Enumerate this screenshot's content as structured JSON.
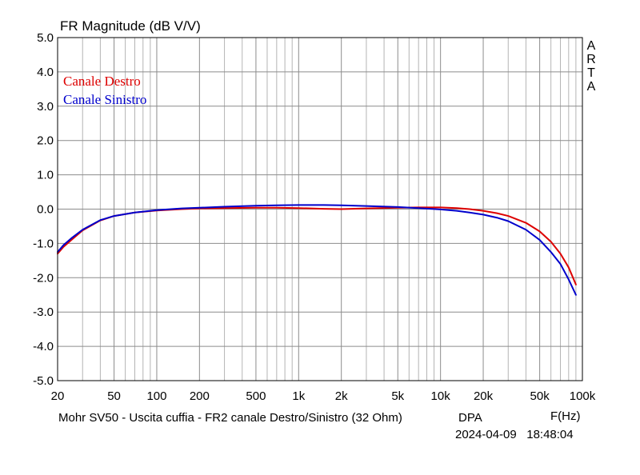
{
  "chart_data": {
    "type": "line",
    "title": "FR Magnitude (dB V/V)",
    "x_scale": "log",
    "xlim": [
      20,
      100000
    ],
    "ylim": [
      -5,
      5
    ],
    "grid": true,
    "legend_position": "top-left",
    "x_ticks": [
      {
        "value": 20,
        "label": "20"
      },
      {
        "value": 50,
        "label": "50"
      },
      {
        "value": 100,
        "label": "100"
      },
      {
        "value": 200,
        "label": "200"
      },
      {
        "value": 500,
        "label": "500"
      },
      {
        "value": 1000,
        "label": "1k"
      },
      {
        "value": 2000,
        "label": "2k"
      },
      {
        "value": 5000,
        "label": "5k"
      },
      {
        "value": 10000,
        "label": "10k"
      },
      {
        "value": 20000,
        "label": "20k"
      },
      {
        "value": 50000,
        "label": "50k"
      },
      {
        "value": 100000,
        "label": "100k"
      }
    ],
    "y_ticks": [
      {
        "value": 5,
        "label": "5.0"
      },
      {
        "value": 4,
        "label": "4.0"
      },
      {
        "value": 3,
        "label": "3.0"
      },
      {
        "value": 2,
        "label": "2.0"
      },
      {
        "value": 1,
        "label": "1.0"
      },
      {
        "value": 0,
        "label": "0.0"
      },
      {
        "value": -1,
        "label": "-1.0"
      },
      {
        "value": -2,
        "label": "-2.0"
      },
      {
        "value": -3,
        "label": "-3.0"
      },
      {
        "value": -4,
        "label": "-4.0"
      },
      {
        "value": -5,
        "label": "-5.0"
      }
    ],
    "series": [
      {
        "name": "Canale Destro",
        "color": "#dd0000",
        "x": [
          20,
          22,
          25,
          30,
          40,
          50,
          70,
          100,
          150,
          200,
          300,
          500,
          700,
          1000,
          1500,
          2000,
          3000,
          5000,
          7000,
          10000,
          13000,
          16000,
          20000,
          25000,
          30000,
          40000,
          50000,
          60000,
          70000,
          80000,
          90000
        ],
        "y": [
          -1.3,
          -1.1,
          -0.9,
          -0.62,
          -0.33,
          -0.2,
          -0.1,
          -0.04,
          0.0,
          0.02,
          0.03,
          0.04,
          0.04,
          0.03,
          0.01,
          0.0,
          0.02,
          0.04,
          0.05,
          0.05,
          0.03,
          0.0,
          -0.05,
          -0.12,
          -0.2,
          -0.4,
          -0.65,
          -0.95,
          -1.3,
          -1.7,
          -2.2
        ]
      },
      {
        "name": "Canale Sinistro",
        "color": "#0000cc",
        "x": [
          20,
          22,
          25,
          30,
          40,
          50,
          70,
          100,
          150,
          200,
          300,
          500,
          700,
          1000,
          1500,
          2000,
          3000,
          5000,
          7000,
          10000,
          13000,
          16000,
          20000,
          25000,
          30000,
          40000,
          50000,
          60000,
          70000,
          80000,
          90000
        ],
        "y": [
          -1.25,
          -1.05,
          -0.85,
          -0.6,
          -0.32,
          -0.2,
          -0.1,
          -0.03,
          0.02,
          0.04,
          0.07,
          0.1,
          0.11,
          0.12,
          0.12,
          0.11,
          0.09,
          0.06,
          0.03,
          -0.01,
          -0.05,
          -0.1,
          -0.16,
          -0.25,
          -0.35,
          -0.6,
          -0.9,
          -1.25,
          -1.6,
          -2.05,
          -2.5
        ]
      }
    ]
  },
  "side_label": [
    "A",
    "R",
    "T",
    "A"
  ],
  "footer": {
    "description": "Mohr SV50 - Uscita cuffia - FR2 canale Destro/Sinistro (32 Ohm)",
    "brand": "DPA",
    "axis_unit": "F(Hz)",
    "datetime": "2024-04-09   18:48:04"
  }
}
